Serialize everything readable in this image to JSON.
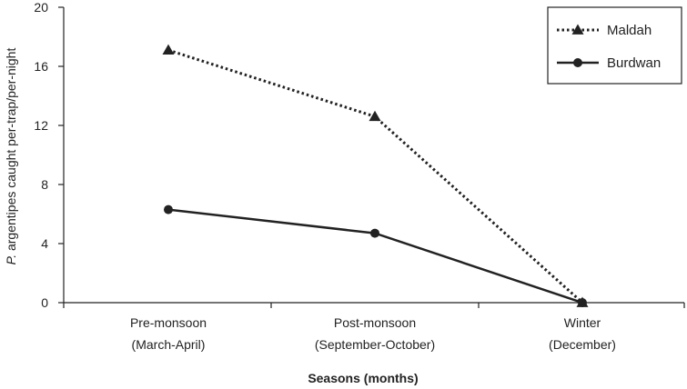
{
  "chart_data": {
    "type": "line",
    "xlabel": "Seasons (months)",
    "ylabel_italic": "P.",
    "ylabel_rest": " argentipes caught per-trap/per-night",
    "categories": [
      [
        "Pre-monsoon",
        "(March-April)"
      ],
      [
        "Post-monsoon",
        "(September-October)"
      ],
      [
        "Winter",
        "(December)"
      ]
    ],
    "ylim": [
      0,
      20
    ],
    "yticks": [
      0,
      4,
      8,
      12,
      16,
      20
    ],
    "grid": false,
    "legend_position": "top-right",
    "series": [
      {
        "name": "Maldah",
        "values": [
          17.1,
          12.6,
          0
        ],
        "line_style": "dotted",
        "marker": "triangle",
        "color": "#222222"
      },
      {
        "name": "Burdwan",
        "values": [
          6.3,
          4.7,
          0
        ],
        "line_style": "solid",
        "marker": "circle",
        "color": "#222222"
      }
    ]
  }
}
